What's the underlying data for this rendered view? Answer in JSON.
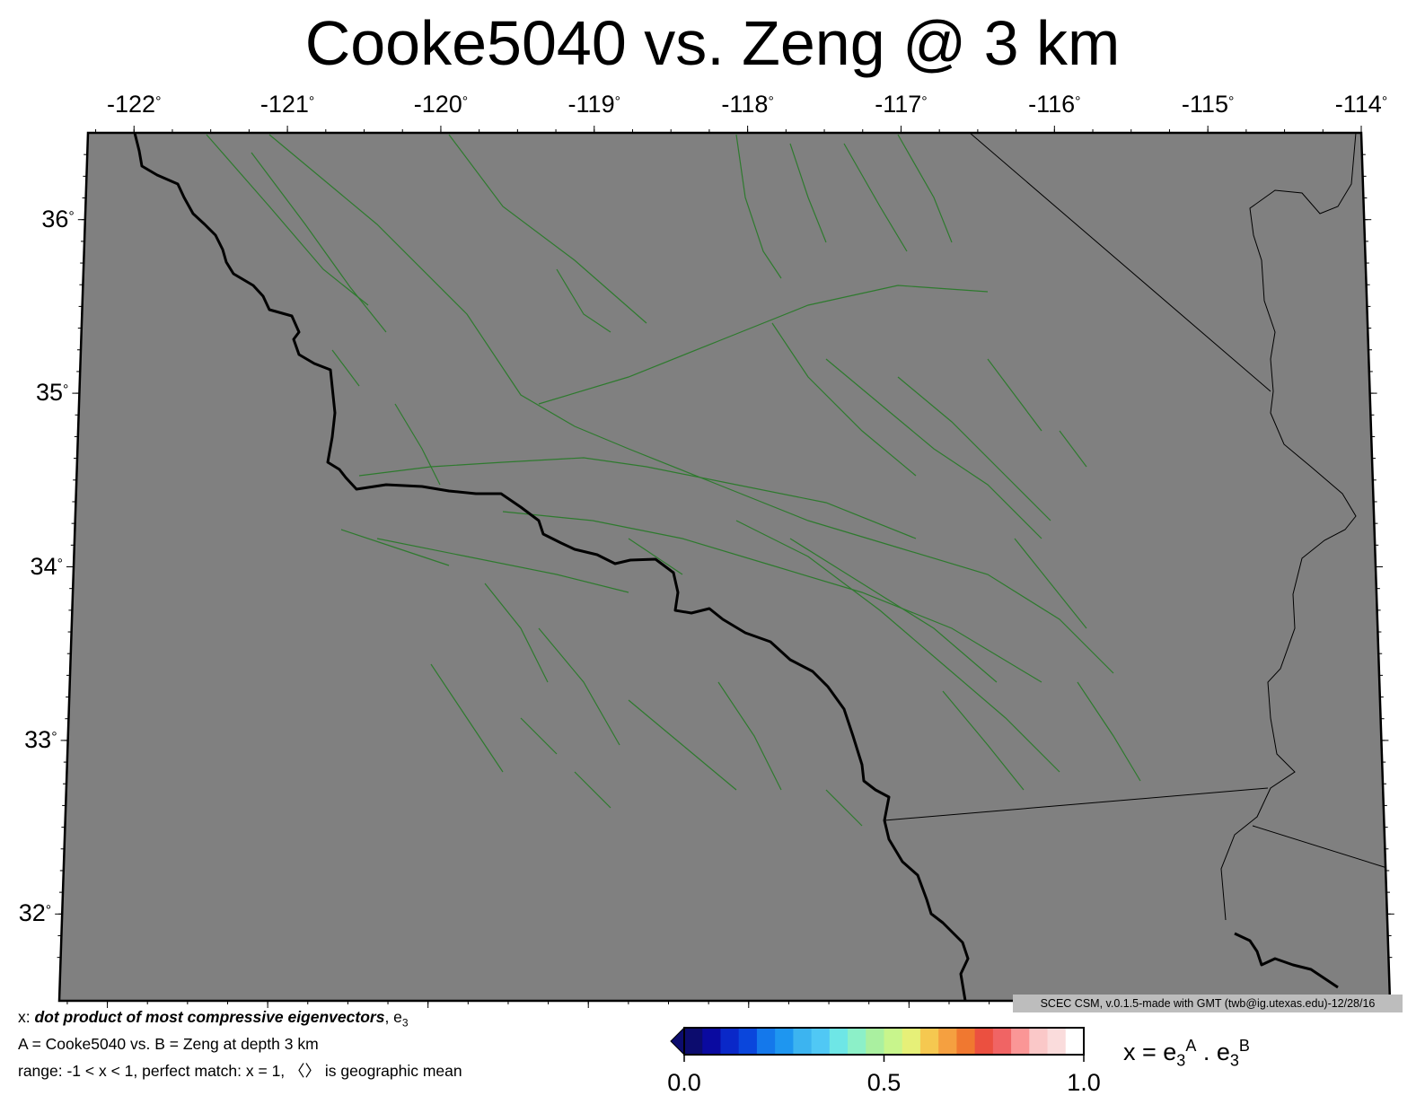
{
  "title": "Cooke5040 vs. Zeng @ 3 km",
  "lon_ticks": [
    {
      "label": "-122",
      "value": -122
    },
    {
      "label": "-121",
      "value": -121
    },
    {
      "label": "-120",
      "value": -120
    },
    {
      "label": "-119",
      "value": -119
    },
    {
      "label": "-118",
      "value": -118
    },
    {
      "label": "-117",
      "value": -117
    },
    {
      "label": "-116",
      "value": -116
    },
    {
      "label": "-115",
      "value": -115
    },
    {
      "label": "-114",
      "value": -114
    }
  ],
  "lat_ticks": [
    {
      "label": "36",
      "value": 36
    },
    {
      "label": "35",
      "value": 35
    },
    {
      "label": "34",
      "value": 34
    },
    {
      "label": "33",
      "value": 33
    },
    {
      "label": "32",
      "value": 32
    }
  ],
  "degree_symbol": "°",
  "map": {
    "lon_range": [
      -122.3,
      -114
    ],
    "lat_range": [
      31.5,
      36.5
    ],
    "background_color": "#808080",
    "fault_color": "#2e7a2e",
    "coast_color": "#000000"
  },
  "credit": "SCEC CSM, v.0.1.5-made with GMT (twb@ig.utexas.edu)-12/28/16",
  "caption": {
    "line1_prefix": "x: ",
    "line1_bold": "dot product of most compressive eigenvectors",
    "line1_suffix": ", e",
    "line1_sub": "3",
    "line2": "A = Cooke5040 vs.  B = Zeng at depth 3 km",
    "line3": "range: -1 < x < 1, perfect match: x = 1, 〈〉 is geographic mean"
  },
  "colorbar": {
    "colors": [
      "#0c0c6e",
      "#0a0aa0",
      "#0a28c8",
      "#0a46dc",
      "#1478eb",
      "#1e96f0",
      "#3cb4f0",
      "#50c8f5",
      "#6ee6e6",
      "#8cf0c8",
      "#aaf0a0",
      "#c8f58c",
      "#e6f078",
      "#f5c850",
      "#f5a040",
      "#f07830",
      "#eb5040",
      "#f06464",
      "#fa9696",
      "#fac8c8",
      "#fadcdc",
      "#ffffff"
    ],
    "ticks": [
      {
        "label": "0.0",
        "value": 0.0
      },
      {
        "label": "0.5",
        "value": 0.5
      },
      {
        "label": "1.0",
        "value": 1.0
      }
    ],
    "label_lhs": "x = e",
    "label_sub1": "3",
    "label_sup1": "A",
    "label_mid": " . e",
    "label_sub2": "3",
    "label_sup2": "B"
  }
}
